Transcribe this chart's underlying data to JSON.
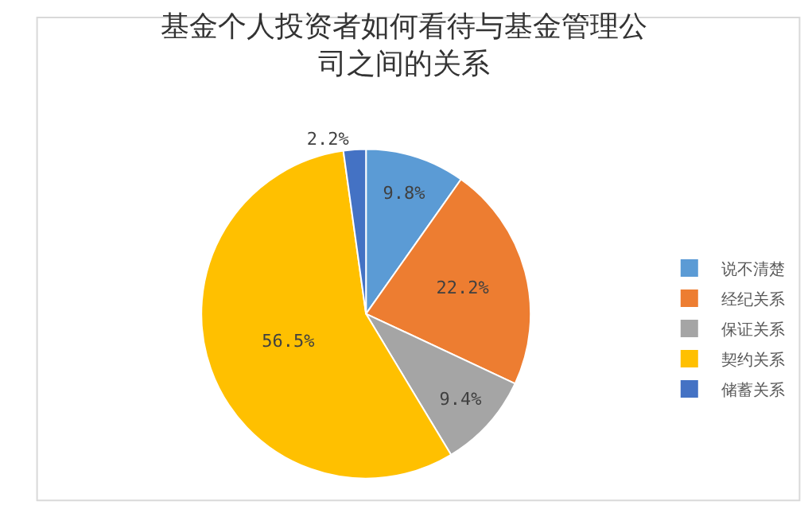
{
  "chart_data": {
    "type": "pie",
    "title": "基金个人投资者如何看待与基金管理公司之间的关系",
    "categories": [
      "说不清楚",
      "经纪关系",
      "保证关系",
      "契约关系",
      "储蓄关系"
    ],
    "values": [
      9.8,
      22.2,
      9.4,
      56.5,
      2.2
    ],
    "value_labels": [
      "9.8%",
      "22.2%",
      "9.4%",
      "56.5%",
      "2.2%"
    ],
    "colors": [
      "#5b9bd5",
      "#ed7d31",
      "#a5a5a5",
      "#ffc000",
      "#4472c4"
    ],
    "legend": "right"
  }
}
